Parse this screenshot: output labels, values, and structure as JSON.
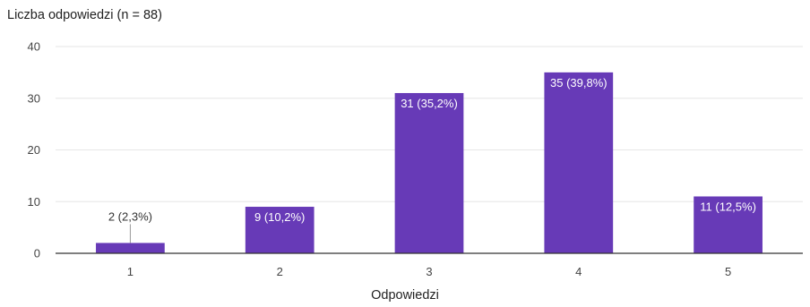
{
  "chart_data": {
    "type": "bar",
    "title": "Liczba odpowiedzi (n = 88)",
    "xlabel": "Odpowiedzi",
    "ylabel": "",
    "ylim": [
      0,
      40
    ],
    "yticks": [
      0,
      10,
      20,
      30,
      40
    ],
    "categories": [
      "1",
      "2",
      "3",
      "4",
      "5"
    ],
    "values": [
      2,
      9,
      31,
      35,
      11
    ],
    "data_labels": [
      "2 (2,3%)",
      "9 (10,2%)",
      "31 (35,2%)",
      "35 (39,8%)",
      "11 (12,5%)"
    ],
    "grid": true,
    "legend": "none",
    "colors": {
      "bar": "#673ab7",
      "grid": "#e6e6e6",
      "axis": "#333333",
      "label_inside": "#ffffff",
      "label_outside": "#333333"
    }
  }
}
